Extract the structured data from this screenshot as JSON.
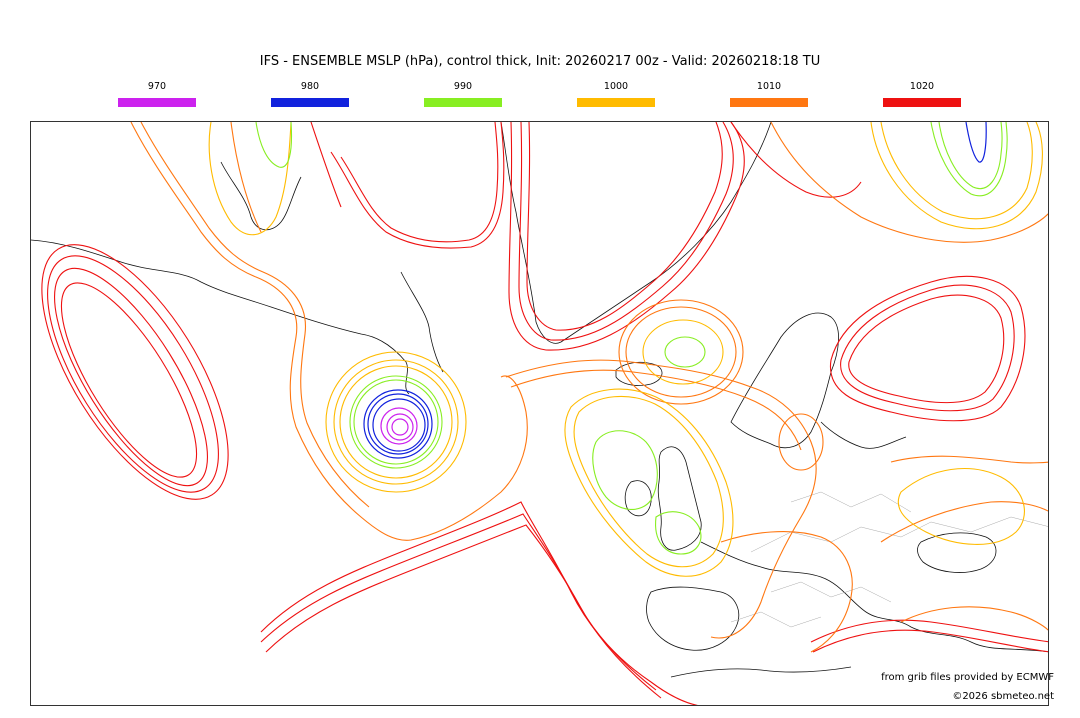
{
  "title": "IFS - ENSEMBLE MSLP (hPa), control thick, Init: 20260217 00z - Valid: 20260218:18 TU",
  "legend": [
    {
      "label": "970",
      "color": "#cc22ee"
    },
    {
      "label": "980",
      "color": "#1122dd"
    },
    {
      "label": "990",
      "color": "#88ee22"
    },
    {
      "label": "1000",
      "color": "#ffbb00"
    },
    {
      "label": "1010",
      "color": "#ff7711"
    },
    {
      "label": "1020",
      "color": "#ee1111"
    }
  ],
  "credits": {
    "source": "from grib files provided by ECMWF",
    "copyright": "©2026 sbmeteo.net"
  }
}
